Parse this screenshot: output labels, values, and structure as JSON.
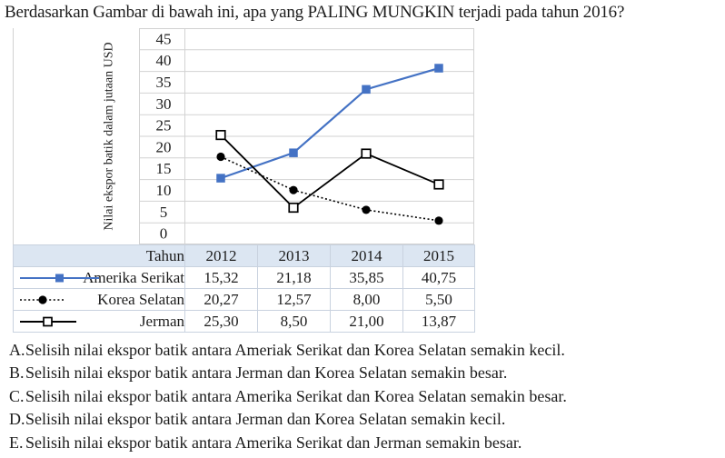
{
  "question": {
    "title": "Berdasarkan Gambar di bawah ini, apa yang PALING MUNGKIN terjadi pada tahun 2016?",
    "options": [
      {
        "label": "A.",
        "text": "Selisih nilai ekspor batik antara Ameriak Serikat dan Korea Selatan semakin kecil."
      },
      {
        "label": "B.",
        "text": "Selisih nilai ekspor batik antara Jerman dan Korea Selatan semakin besar."
      },
      {
        "label": "C.",
        "text": "Selisih nilai ekspor batik antara Amerika Serikat dan Korea Selatan semakin besar."
      },
      {
        "label": "D.",
        "text": "Selisih nilai ekspor batik antara Jerman dan Korea Selatan semakin kecil."
      },
      {
        "label": "E.",
        "text": "Selisih nilai ekspor batik antara Amerika Serikat dan Jerman semakin besar."
      }
    ]
  },
  "chart_data": {
    "type": "line",
    "title": "",
    "xlabel": "Tahun",
    "ylabel": "Nilai ekspor batik dalam jutaan USD",
    "categories": [
      "2012",
      "2013",
      "2014",
      "2015"
    ],
    "y_ticks": [
      45,
      40,
      35,
      30,
      25,
      20,
      15,
      10,
      5,
      0
    ],
    "ylim": [
      0,
      50
    ],
    "grid": true,
    "legend_position": "table-left",
    "series": [
      {
        "name": "Amerika Serikat",
        "marker": "filled-square",
        "line_style": "solid",
        "color": "#4472C4",
        "values": [
          15.32,
          21.18,
          35.85,
          40.75
        ],
        "display": [
          "15,32",
          "21,18",
          "35,85",
          "40,75"
        ]
      },
      {
        "name": "Korea Selatan",
        "marker": "filled-circle",
        "line_style": "dotted",
        "color": "#000000",
        "values": [
          20.27,
          12.57,
          8.0,
          5.5
        ],
        "display": [
          "20,27",
          "12,57",
          "8,00",
          "5,50"
        ]
      },
      {
        "name": "Jerman",
        "marker": "open-square",
        "line_style": "solid",
        "color": "#000000",
        "values": [
          25.3,
          8.5,
          21.0,
          13.87
        ],
        "display": [
          "25,30",
          "8,50",
          "21,00",
          "13,87"
        ]
      }
    ]
  },
  "colors": {
    "accent_blue": "#4472C4",
    "table_header_bg": "#dce6f2",
    "grid": "#d2d2d2",
    "text": "#1c1c1c"
  }
}
